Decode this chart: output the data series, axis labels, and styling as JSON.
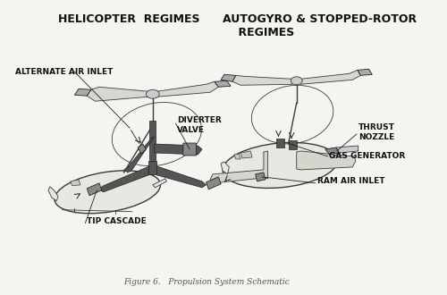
{
  "bg_color": "#f5f4f0",
  "line_color": "#3a3a3a",
  "dark_color": "#222222",
  "mid_color": "#666666",
  "light_color": "#bbbbbb",
  "fill_body": "#e8e7e2",
  "fill_dark": "#555555",
  "fill_med": "#888888",
  "title_left": "HELICOPTER  REGIMES",
  "title_right": "AUTOGYRO & STOPPED-ROTOR\n    REGIMES",
  "caption": "Figure 6.   Propulsion System Schematic",
  "label_color": "#111111",
  "figsize": [
    5.0,
    3.3
  ],
  "dpi": 100
}
